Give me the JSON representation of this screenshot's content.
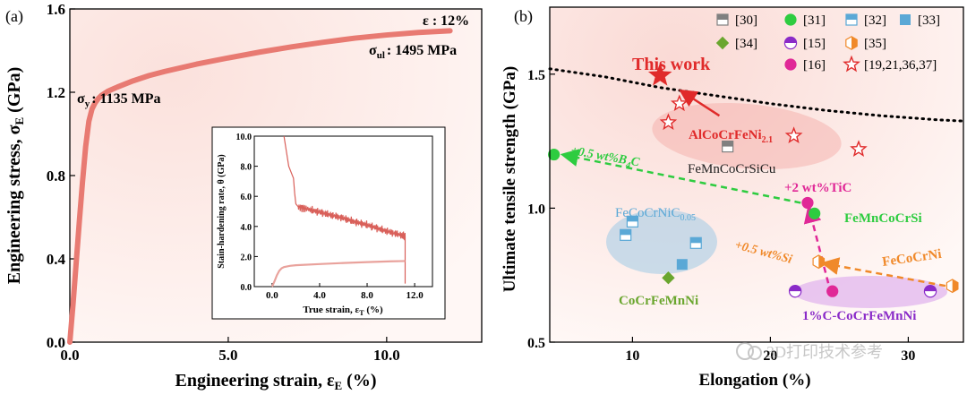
{
  "panel_a": {
    "label": "(a)",
    "chart_data": {
      "type": "line",
      "title": "",
      "xlabel": "Engineering strain, ε",
      "xlabel_sub": "E",
      "xlabel_unit": " (%)",
      "ylabel": "Engineering stress, σ",
      "ylabel_sub": "E",
      "ylabel_unit": " (GPa)",
      "xlim": [
        0,
        13
      ],
      "ylim": [
        0,
        1.6
      ],
      "xticks": [
        0,
        5,
        10
      ],
      "xtick_labels": [
        "0.0",
        "5.0",
        "10.0"
      ],
      "yticks": [
        0,
        0.4,
        0.8,
        1.2,
        1.6
      ],
      "ytick_labels": [
        "0.0",
        "0.4",
        "0.8",
        "1.2",
        "1.6"
      ],
      "series": [
        {
          "name": "stress-strain",
          "color": "#e87a72",
          "x": [
            0,
            0.1,
            0.2,
            0.3,
            0.4,
            0.5,
            0.6,
            0.7,
            0.8,
            0.9,
            1.0,
            1.2,
            1.5,
            2.0,
            2.5,
            3.0,
            4.0,
            5.0,
            6.0,
            7.0,
            8.0,
            9.0,
            10.0,
            11.0,
            12.0
          ],
          "y": [
            0,
            0.18,
            0.38,
            0.58,
            0.77,
            0.94,
            1.06,
            1.12,
            1.15,
            1.17,
            1.185,
            1.205,
            1.225,
            1.255,
            1.28,
            1.3,
            1.335,
            1.365,
            1.393,
            1.418,
            1.44,
            1.46,
            1.475,
            1.487,
            1.495
          ]
        }
      ],
      "annotations": {
        "yield_symbol": "σ",
        "yield_sub": "y",
        "yield_text": ": 1135 MPa",
        "ult_symbol": "σ",
        "ult_sub": "ul",
        "ult_text": ": 1495 MPa",
        "elong": "ε : 12%"
      },
      "inset": {
        "type": "line",
        "xlabel": "True strain, ε",
        "xlabel_sub": "T",
        "xlabel_unit": " (%)",
        "ylabel": "Stain-hardening rate, θ (GPa)",
        "xlim": [
          -1.5,
          13.5
        ],
        "ylim": [
          0,
          10
        ],
        "xticks": [
          0,
          4,
          8,
          12
        ],
        "xtick_labels": [
          "0.0",
          "4.0",
          "8.0",
          "12.0"
        ],
        "yticks": [
          0,
          2,
          4,
          6,
          8,
          10
        ],
        "ytick_labels": [
          "0.0",
          "2.0",
          "4.0",
          "6.0",
          "8.0",
          "10.0"
        ],
        "hardening_color": "#d9605a",
        "stress_color": "#e9a29c",
        "hardening_x": [
          1.0,
          1.2,
          1.4,
          1.6,
          1.8,
          1.9,
          2.0,
          2.2,
          3.0,
          4.0,
          5.0,
          6.0,
          7.0,
          8.0,
          9.0,
          10.0,
          11.0,
          11.2,
          11.2
        ],
        "hardening_y": [
          10.0,
          9.0,
          8.0,
          7.6,
          7.2,
          6.2,
          5.5,
          5.3,
          5.15,
          4.95,
          4.75,
          4.55,
          4.3,
          4.1,
          3.85,
          3.6,
          3.4,
          3.3,
          0.2
        ],
        "stress_x": [
          0.0,
          0.2,
          0.4,
          0.6,
          0.8,
          1.0,
          1.5,
          2.0,
          4.0,
          6.0,
          8.0,
          10.0,
          11.2
        ],
        "stress_y": [
          0.0,
          0.35,
          0.75,
          1.05,
          1.22,
          1.3,
          1.38,
          1.42,
          1.5,
          1.57,
          1.63,
          1.68,
          1.7
        ]
      }
    }
  },
  "panel_b": {
    "label": "(b)",
    "chart_data": {
      "type": "scatter",
      "title": "",
      "xlabel": "Elongation (%)",
      "ylabel": "Ultimate tensile strength (GPa)",
      "xlim": [
        4,
        34
      ],
      "ylim": [
        0.5,
        1.75
      ],
      "xticks": [
        10,
        20,
        30
      ],
      "xtick_labels": [
        "10",
        "20",
        "30"
      ],
      "yticks": [
        0.5,
        1.0,
        1.5
      ],
      "ytick_labels": [
        "0.5",
        "1.0",
        "1.5"
      ],
      "legend": [
        {
          "label": "[30]",
          "marker": "square-half-h",
          "color": "#808080"
        },
        {
          "label": "[31]",
          "marker": "circle",
          "color": "#2ecc40"
        },
        {
          "label": "[32]",
          "marker": "square-half-h",
          "color": "#5aa8d6"
        },
        {
          "label": "[33]",
          "marker": "square",
          "color": "#5aa8d6"
        },
        {
          "label": "[34]",
          "marker": "diamond",
          "color": "#6aa62e"
        },
        {
          "label": "[15]",
          "marker": "circle-half",
          "color": "#8a2bc8"
        },
        {
          "label": "[35]",
          "marker": "hexagon-half",
          "color": "#f0892a"
        },
        {
          "label": "[16]",
          "marker": "circle",
          "color": "#e02897"
        },
        {
          "label": "[19,21,36,37]",
          "marker": "star-open",
          "color": "#e02a2a"
        }
      ],
      "points": [
        {
          "group": "[30]",
          "x": 16.9,
          "y": 1.23
        },
        {
          "group": "[31]",
          "x": 4.3,
          "y": 1.2
        },
        {
          "group": "[31]",
          "x": 23.2,
          "y": 0.98
        },
        {
          "group": "[16]",
          "x": 22.7,
          "y": 1.02
        },
        {
          "group": "[16]",
          "x": 24.5,
          "y": 0.69
        },
        {
          "group": "[32]",
          "x": 10.0,
          "y": 0.95
        },
        {
          "group": "[32]",
          "x": 9.5,
          "y": 0.9
        },
        {
          "group": "[32]",
          "x": 14.6,
          "y": 0.87
        },
        {
          "group": "[33]",
          "x": 13.6,
          "y": 0.79
        },
        {
          "group": "[34]",
          "x": 12.6,
          "y": 0.74
        },
        {
          "group": "[15]",
          "x": 21.8,
          "y": 0.69
        },
        {
          "group": "[15]",
          "x": 31.6,
          "y": 0.69
        },
        {
          "group": "[35]",
          "x": 23.5,
          "y": 0.8
        },
        {
          "group": "[35]",
          "x": 33.2,
          "y": 0.71
        },
        {
          "group": "[19,21,36,37]",
          "x": 13.4,
          "y": 1.39
        },
        {
          "group": "[19,21,36,37]",
          "x": 12.6,
          "y": 1.32
        },
        {
          "group": "[19,21,36,37]",
          "x": 21.7,
          "y": 1.27
        },
        {
          "group": "[19,21,36,37]",
          "x": 26.4,
          "y": 1.22
        },
        {
          "group": "This work",
          "x": 12.0,
          "y": 1.495
        }
      ],
      "trend_line": {
        "x": [
          4,
          8,
          12,
          16,
          20,
          24,
          28,
          32,
          34
        ],
        "y": [
          1.52,
          1.49,
          1.45,
          1.42,
          1.39,
          1.365,
          1.345,
          1.33,
          1.325
        ]
      },
      "labels": {
        "this_work": "This work",
        "alcocrfeni": "AlCoCrFeNi",
        "alcocrfeni_sub": "2.1",
        "femncocrsicu": "FeMnCoCrSiCu",
        "b4c_prefix": "+0.5 wt%B",
        "b4c_sub": "4",
        "b4c_suffix": "C",
        "tic": "+2 wt%TiC",
        "femncocrsi": "FeMnCoCrSi",
        "fecocrnic": "FeCoCrNiC",
        "fecocrnic_sub": "0.05",
        "si": "+0.5 wt%Si",
        "fecocrni": "FeCoCrNi",
        "cocrfemnni": "CoCrFeMnNi",
        "carbon": "1%C-CoCrFeMnNi"
      },
      "colors": {
        "red": "#e02a2a",
        "green": "#2ecc40",
        "blue": "#5aa8d6",
        "olive": "#6aa62e",
        "magenta": "#e02897",
        "purple": "#8a2bc8",
        "orange": "#f0892a",
        "grey": "#808080"
      }
    }
  },
  "watermark": "3D打印技术参考"
}
